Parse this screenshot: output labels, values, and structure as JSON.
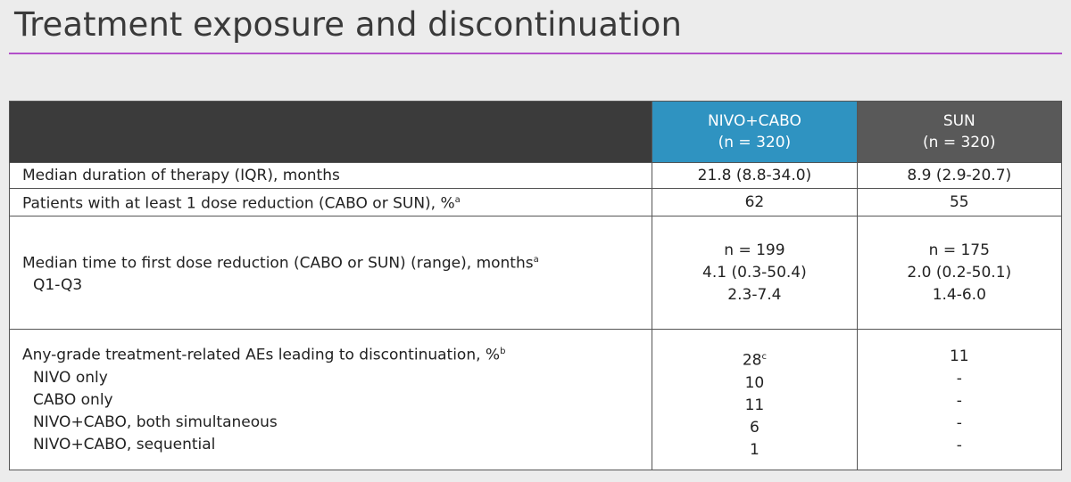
{
  "title": "Treatment exposure and discontinuation",
  "table": {
    "columns": [
      {
        "name": "NIVO+CABO",
        "n": "(n = 320)"
      },
      {
        "name": "SUN",
        "n": "(n = 320)"
      }
    ],
    "rows": [
      {
        "label": "Median duration of therapy (IQR), months",
        "cells": [
          [
            "21.8 (8.8-34.0)"
          ],
          [
            "8.9 (2.9-20.7)"
          ]
        ]
      },
      {
        "label": "Patients with at least 1 dose reduction (CABO or SUN), %",
        "sup": "a",
        "cells": [
          [
            "62"
          ],
          [
            "55"
          ]
        ]
      },
      {
        "label": "Median time to first dose reduction (CABO or SUN) (range), months",
        "sup": "a",
        "sublabels": [
          "Q1-Q3"
        ],
        "cells": [
          [
            "n = 199",
            "4.1 (0.3-50.4)",
            "2.3-7.4"
          ],
          [
            "n = 175",
            "2.0 (0.2-50.1)",
            "1.4-6.0"
          ]
        ]
      },
      {
        "label": "Any-grade treatment-related AEs leading to discontinuation, %",
        "sup": "b",
        "sublabels": [
          "NIVO only",
          "CABO only",
          "NIVO+CABO, both simultaneous",
          "NIVO+CABO, sequential"
        ],
        "cells": [
          [
            {
              "text": "28",
              "sup": "c"
            },
            "10",
            "11",
            "6",
            "1"
          ],
          [
            "11",
            "-",
            "-",
            "-",
            "-"
          ]
        ]
      }
    ]
  }
}
